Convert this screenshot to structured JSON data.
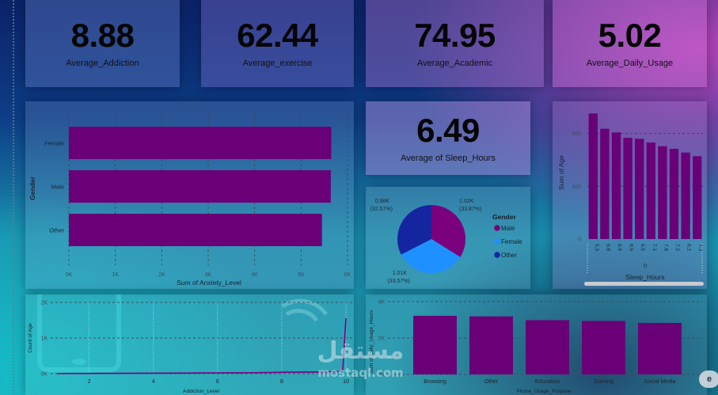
{
  "kpis": {
    "addiction": {
      "value": "8.88",
      "label": "Average_Addiction"
    },
    "exercise": {
      "value": "62.44",
      "label": "Average_exercise"
    },
    "academic": {
      "value": "74.95",
      "label": "Average_Academic"
    },
    "daily_usage": {
      "value": "5.02",
      "label": "Average_Daily_Usage"
    },
    "sleep": {
      "value": "6.49",
      "label": "Average of Sleep_Hours"
    }
  },
  "watermark": {
    "arabic": "مستقل",
    "latin": "mostaql.com"
  },
  "corner_badge": "e",
  "colors": {
    "bar": "#6a0078",
    "male": "#7a007e",
    "female": "#1e90ff",
    "other": "#1525a0"
  },
  "chart_data": [
    {
      "id": "anxiety_by_gender",
      "type": "bar",
      "orientation": "horizontal",
      "categories": [
        "Female",
        "Male",
        "Other"
      ],
      "values": [
        5650,
        5640,
        5450
      ],
      "xlabel": "Sum of Anxiety_Level",
      "ylabel": "Gender",
      "xticks": [
        "0K",
        "1K",
        "2K",
        "3K",
        "4K",
        "5K",
        "6K"
      ],
      "xlim": [
        0,
        6000
      ],
      "grid": true
    },
    {
      "id": "gender_pie",
      "type": "pie",
      "title": "Gender",
      "categories": [
        "Male",
        "Female",
        "Other"
      ],
      "values": [
        1020,
        1010,
        980
      ],
      "value_labels": [
        "1.02K",
        "1.01K",
        "0.98K"
      ],
      "percent_labels": [
        "(33.87%)",
        "(33.57%)",
        "(32.57%)"
      ],
      "percents": [
        33.87,
        33.57,
        32.57
      ],
      "legend_position": "right"
    },
    {
      "id": "age_by_sleep_hours",
      "type": "bar",
      "categories": [
        "5.3",
        "6.8",
        "6.6",
        "6.9",
        "6.5",
        "7.1",
        "7.8",
        "7.2",
        "6.1",
        "7.3"
      ],
      "values": [
        238,
        209,
        202,
        192,
        190,
        183,
        176,
        171,
        164,
        157
      ],
      "xlabel": "Sleep_Hours",
      "ylabel": "Sum of Age",
      "yticks": [
        "0",
        "100",
        "200"
      ],
      "ylim": [
        0,
        240
      ],
      "x_group_label": "0",
      "grid": true
    },
    {
      "id": "count_age_by_addiction",
      "type": "line",
      "x": [
        1.0,
        2.0,
        3.0,
        4.0,
        5.0,
        6.0,
        7.0,
        7.8,
        8.0,
        9.0,
        9.8,
        9.9,
        10.0
      ],
      "y": [
        0,
        5,
        10,
        12,
        15,
        20,
        25,
        35,
        40,
        45,
        60,
        80,
        1560
      ],
      "xlabel": "Addiction_Level",
      "ylabel": "Count of Age",
      "xticks": [
        "2",
        "4",
        "6",
        "8",
        "10"
      ],
      "yticks": [
        "0K",
        "1K",
        "2K"
      ],
      "ylim": [
        0,
        2000
      ],
      "grid": true
    },
    {
      "id": "daily_usage_by_purpose",
      "type": "bar",
      "categories": [
        "Browsing",
        "Other",
        "Education",
        "Gaming",
        "Social Media"
      ],
      "values": [
        3220,
        3190,
        2980,
        2940,
        2830
      ],
      "xlabel": "Phone_Usage_Purpose",
      "ylabel": "Sum of Daily_Usage_Hours",
      "yticks": [
        "0K",
        "2K",
        "4K"
      ],
      "ylim": [
        0,
        4000
      ],
      "grid": true
    }
  ]
}
